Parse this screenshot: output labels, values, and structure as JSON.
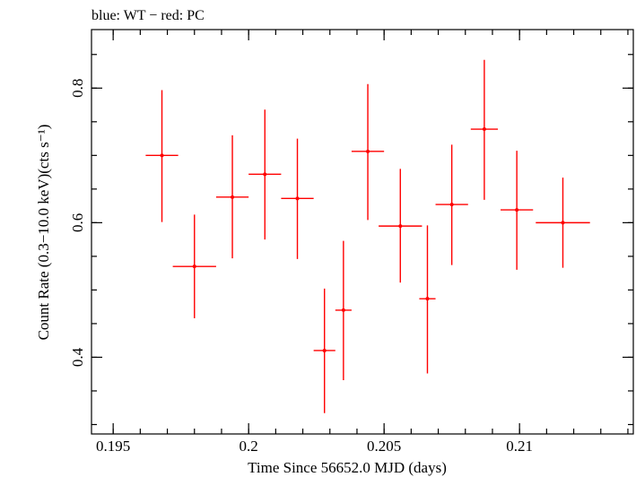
{
  "chart_data": {
    "type": "scatter",
    "title": "blue: WT − red: PC",
    "xlabel": "Time Since 56652.0 MJD (days)",
    "ylabel": "Count Rate (0.3−10.0 keV)(cts s⁻¹)",
    "xlim": [
      0.1942,
      0.2142
    ],
    "ylim": [
      0.286,
      0.887
    ],
    "x_ticks": [
      0.195,
      0.2,
      0.205,
      0.21
    ],
    "x_tick_labels": [
      "0.195",
      "0.2",
      "0.205",
      "0.21"
    ],
    "y_ticks": [
      0.4,
      0.6,
      0.8
    ],
    "y_tick_labels": [
      "0.4",
      "0.6",
      "0.8"
    ],
    "grid": false,
    "series": [
      {
        "name": "PC",
        "color": "#ff0000",
        "points": [
          {
            "x": 0.1968,
            "y": 0.7,
            "xerr": 0.0006,
            "ylo": 0.601,
            "yhi": 0.797
          },
          {
            "x": 0.198,
            "y": 0.535,
            "xerr": 0.0008,
            "ylo": 0.458,
            "yhi": 0.612
          },
          {
            "x": 0.1994,
            "y": 0.638,
            "xerr": 0.0006,
            "ylo": 0.547,
            "yhi": 0.73
          },
          {
            "x": 0.2006,
            "y": 0.672,
            "xerr": 0.0006,
            "ylo": 0.575,
            "yhi": 0.768
          },
          {
            "x": 0.2018,
            "y": 0.636,
            "xerr": 0.0006,
            "ylo": 0.546,
            "yhi": 0.725
          },
          {
            "x": 0.2028,
            "y": 0.41,
            "xerr": 0.0004,
            "ylo": 0.317,
            "yhi": 0.502
          },
          {
            "x": 0.2035,
            "y": 0.47,
            "xerr": 0.0003,
            "ylo": 0.366,
            "yhi": 0.573
          },
          {
            "x": 0.2044,
            "y": 0.706,
            "xerr": 0.0006,
            "ylo": 0.604,
            "yhi": 0.806
          },
          {
            "x": 0.2056,
            "y": 0.595,
            "xerr": 0.0008,
            "ylo": 0.511,
            "yhi": 0.68
          },
          {
            "x": 0.2066,
            "y": 0.487,
            "xerr": 0.0003,
            "ylo": 0.376,
            "yhi": 0.596
          },
          {
            "x": 0.2075,
            "y": 0.627,
            "xerr": 0.0006,
            "ylo": 0.537,
            "yhi": 0.716
          },
          {
            "x": 0.2087,
            "y": 0.739,
            "xerr": 0.0005,
            "ylo": 0.634,
            "yhi": 0.842
          },
          {
            "x": 0.2099,
            "y": 0.619,
            "xerr": 0.0006,
            "ylo": 0.53,
            "yhi": 0.707
          },
          {
            "x": 0.2116,
            "y": 0.6,
            "xerr": 0.001,
            "ylo": 0.533,
            "yhi": 0.667
          }
        ]
      }
    ]
  }
}
